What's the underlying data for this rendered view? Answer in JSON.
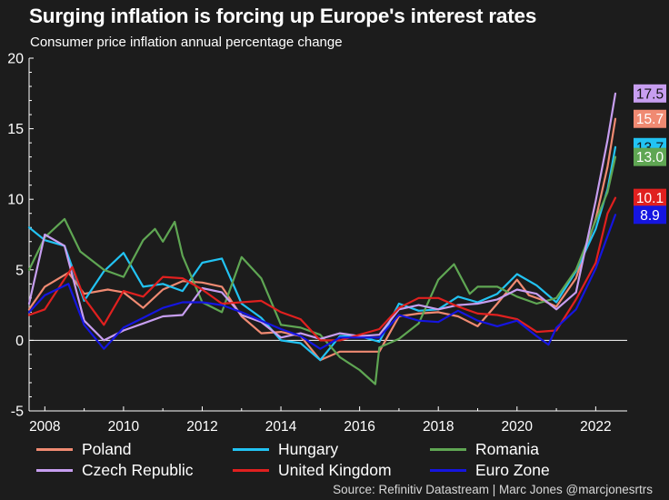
{
  "chart_data": {
    "type": "line",
    "title": "Surging inflation is forcing up Europe's interest rates",
    "subtitle": "Consumer price inflation annual percentage change",
    "source": "Source: Refinitiv Datastream | Marc Jones @marcjonesrtrs",
    "ylim": [
      -5,
      20
    ],
    "xlim": [
      2007.6,
      2022.8
    ],
    "yticks": [
      "20",
      "15",
      "10",
      "5",
      "0",
      "-5"
    ],
    "xticks": [
      "2008",
      "2010",
      "2012",
      "2014",
      "2016",
      "2018",
      "2020",
      "2022"
    ],
    "series": [
      {
        "name": "Poland",
        "color": "#f08a72",
        "end_label": "15.7",
        "x": [
          2007.6,
          2008.0,
          2008.6,
          2009.0,
          2009.6,
          2010.0,
          2010.5,
          2011.0,
          2011.5,
          2012.0,
          2012.5,
          2013.0,
          2013.5,
          2014.0,
          2014.5,
          2015.0,
          2015.5,
          2016.0,
          2016.5,
          2017.0,
          2017.5,
          2018.0,
          2018.5,
          2019.0,
          2019.5,
          2020.0,
          2020.3,
          2020.6,
          2021.0,
          2021.5,
          2022.0,
          2022.3,
          2022.5
        ],
        "y": [
          2.2,
          3.8,
          4.8,
          3.3,
          3.6,
          3.4,
          2.3,
          3.6,
          4.2,
          4.1,
          3.8,
          1.7,
          0.5,
          0.6,
          0.3,
          -1.4,
          -0.8,
          -0.8,
          -0.8,
          1.7,
          1.9,
          2.0,
          1.7,
          1.0,
          2.6,
          4.3,
          3.2,
          2.9,
          2.4,
          4.4,
          8.6,
          12.3,
          15.7
        ]
      },
      {
        "name": "Hungary",
        "color": "#22c3f3",
        "end_label": "13.7",
        "x": [
          2007.6,
          2008.0,
          2008.5,
          2009.0,
          2009.5,
          2010.0,
          2010.5,
          2011.0,
          2011.5,
          2012.0,
          2012.5,
          2013.0,
          2013.5,
          2014.0,
          2014.5,
          2015.0,
          2015.5,
          2016.0,
          2016.5,
          2017.0,
          2017.5,
          2018.0,
          2018.5,
          2019.0,
          2019.5,
          2020.0,
          2020.5,
          2021.0,
          2021.5,
          2022.0,
          2022.3,
          2022.5
        ],
        "y": [
          8.0,
          7.1,
          6.7,
          2.8,
          4.9,
          6.2,
          3.8,
          4.0,
          3.5,
          5.5,
          5.8,
          2.6,
          1.6,
          0.0,
          -0.2,
          -1.4,
          0.3,
          0.3,
          -0.1,
          2.6,
          2.1,
          2.2,
          3.1,
          2.7,
          3.3,
          4.7,
          3.9,
          2.7,
          4.9,
          7.9,
          10.7,
          13.7
        ]
      },
      {
        "name": "Romania",
        "color": "#5fa653",
        "end_label": "13.0",
        "x": [
          2007.6,
          2008.0,
          2008.5,
          2008.9,
          2009.5,
          2010.0,
          2010.5,
          2010.8,
          2011.0,
          2011.3,
          2011.5,
          2012.0,
          2012.5,
          2013.0,
          2013.5,
          2014.0,
          2014.5,
          2015.0,
          2015.5,
          2016.0,
          2016.4,
          2016.5,
          2017.0,
          2017.5,
          2018.0,
          2018.4,
          2018.8,
          2019.0,
          2019.5,
          2020.0,
          2020.5,
          2021.0,
          2021.5,
          2022.0,
          2022.3,
          2022.5
        ],
        "y": [
          5.0,
          7.3,
          8.6,
          6.3,
          5.0,
          4.5,
          7.1,
          7.9,
          7.0,
          8.4,
          6.0,
          2.7,
          2.0,
          5.9,
          4.4,
          1.1,
          0.9,
          0.4,
          -1.2,
          -2.1,
          -3.1,
          -0.5,
          0.1,
          1.2,
          4.3,
          5.4,
          3.3,
          3.8,
          3.8,
          3.1,
          2.6,
          3.0,
          5.0,
          8.5,
          10.5,
          13.0
        ]
      },
      {
        "name": "Czech Republic",
        "color": "#c79ef0",
        "end_label": "17.5",
        "x": [
          2007.6,
          2008.0,
          2008.5,
          2009.0,
          2009.5,
          2010.0,
          2010.5,
          2011.0,
          2011.5,
          2012.0,
          2012.5,
          2013.0,
          2013.5,
          2014.0,
          2014.5,
          2015.0,
          2015.5,
          2016.0,
          2016.5,
          2017.0,
          2017.5,
          2018.0,
          2018.5,
          2019.0,
          2019.5,
          2020.0,
          2020.5,
          2021.0,
          2021.5,
          2022.0,
          2022.3,
          2022.5
        ],
        "y": [
          2.6,
          7.5,
          6.7,
          1.4,
          0.0,
          0.7,
          1.2,
          1.7,
          1.8,
          3.7,
          3.4,
          1.8,
          1.3,
          0.2,
          0.5,
          0.1,
          0.5,
          0.3,
          0.4,
          2.2,
          2.5,
          2.2,
          2.5,
          2.6,
          2.9,
          3.6,
          3.3,
          2.2,
          3.4,
          9.9,
          14.2,
          17.5
        ]
      },
      {
        "name": "United Kingdom",
        "color": "#e0201f",
        "end_label": "10.1",
        "x": [
          2007.6,
          2008.0,
          2008.7,
          2009.0,
          2009.5,
          2010.0,
          2010.5,
          2011.0,
          2011.5,
          2012.0,
          2012.5,
          2013.0,
          2013.5,
          2014.0,
          2014.5,
          2015.0,
          2015.5,
          2016.0,
          2016.5,
          2017.0,
          2017.5,
          2018.0,
          2018.5,
          2019.0,
          2019.5,
          2020.0,
          2020.5,
          2021.0,
          2021.5,
          2022.0,
          2022.3,
          2022.5
        ],
        "y": [
          1.8,
          2.2,
          5.2,
          3.0,
          1.1,
          3.5,
          3.1,
          4.5,
          4.4,
          3.6,
          2.6,
          2.7,
          2.8,
          2.0,
          1.5,
          0.0,
          0.0,
          0.4,
          0.8,
          2.3,
          3.0,
          3.0,
          2.4,
          1.9,
          1.8,
          1.5,
          0.6,
          0.7,
          2.9,
          5.5,
          9.0,
          10.1
        ]
      },
      {
        "name": "Euro Zone",
        "color": "#1515e0",
        "end_label": "8.9",
        "x": [
          2007.6,
          2008.0,
          2008.6,
          2009.0,
          2009.5,
          2010.0,
          2010.5,
          2011.0,
          2011.5,
          2012.0,
          2012.5,
          2013.0,
          2013.5,
          2014.0,
          2014.5,
          2015.0,
          2015.5,
          2016.0,
          2016.5,
          2017.0,
          2017.5,
          2018.0,
          2018.5,
          2019.0,
          2019.5,
          2020.0,
          2020.5,
          2020.8,
          2021.0,
          2021.5,
          2022.0,
          2022.3,
          2022.5
        ],
        "y": [
          2.0,
          3.2,
          4.0,
          1.1,
          -0.6,
          0.9,
          1.6,
          2.3,
          2.7,
          2.7,
          2.5,
          2.0,
          1.4,
          0.8,
          0.3,
          -0.6,
          0.2,
          0.2,
          0.2,
          1.8,
          1.4,
          1.3,
          2.1,
          1.4,
          1.0,
          1.4,
          0.3,
          -0.3,
          0.9,
          2.2,
          5.1,
          7.4,
          8.9
        ]
      }
    ]
  }
}
